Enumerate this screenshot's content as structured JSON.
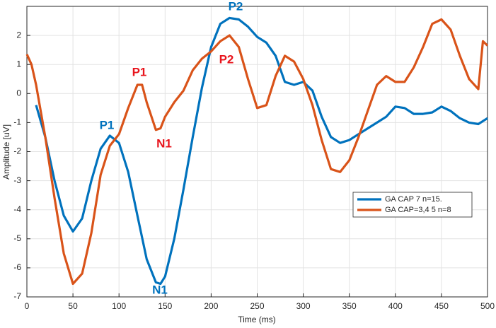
{
  "chart_data": {
    "type": "line",
    "xlabel": "Time (ms)",
    "ylabel": "Amplitude [uV]",
    "xlim": [
      0,
      500
    ],
    "xticks": [
      0,
      50,
      100,
      150,
      200,
      250,
      300,
      350,
      400,
      450,
      500
    ],
    "ylim": [
      -7,
      3
    ],
    "yticks": [
      -7,
      -6,
      -5,
      -4,
      -3,
      -2,
      -1,
      0,
      1,
      2
    ],
    "grid": true,
    "legend": "lower right",
    "series": [
      {
        "name": "GA CAP 7 n=15.",
        "color": "#0072bd",
        "x": [
          10,
          20,
          30,
          40,
          50,
          60,
          70,
          80,
          90,
          100,
          110,
          120,
          130,
          140,
          145,
          150,
          160,
          170,
          180,
          190,
          200,
          210,
          220,
          230,
          240,
          250,
          260,
          270,
          280,
          290,
          300,
          310,
          320,
          330,
          340,
          350,
          360,
          370,
          380,
          390,
          400,
          410,
          420,
          430,
          440,
          450,
          460,
          470,
          480,
          490,
          500
        ],
        "values": [
          -0.4,
          -1.5,
          -3.0,
          -4.2,
          -4.75,
          -4.3,
          -3.0,
          -1.9,
          -1.45,
          -1.7,
          -2.7,
          -4.2,
          -5.7,
          -6.5,
          -6.55,
          -6.3,
          -5.0,
          -3.3,
          -1.5,
          0.2,
          1.6,
          2.4,
          2.6,
          2.55,
          2.3,
          1.95,
          1.75,
          1.3,
          0.4,
          0.3,
          0.4,
          0.1,
          -0.8,
          -1.5,
          -1.7,
          -1.6,
          -1.4,
          -1.2,
          -1.0,
          -0.8,
          -0.45,
          -0.5,
          -0.7,
          -0.7,
          -0.65,
          -0.45,
          -0.6,
          -0.85,
          -1.0,
          -1.05,
          -0.85
        ]
      },
      {
        "name": "GA CAP=3,4 5 n=8",
        "color": "#d95319",
        "x": [
          0,
          5,
          10,
          20,
          30,
          40,
          50,
          60,
          70,
          80,
          90,
          100,
          110,
          120,
          125,
          130,
          140,
          145,
          150,
          160,
          170,
          180,
          190,
          200,
          210,
          220,
          230,
          240,
          250,
          260,
          270,
          280,
          290,
          300,
          310,
          320,
          330,
          340,
          350,
          360,
          370,
          380,
          390,
          400,
          410,
          420,
          430,
          440,
          450,
          460,
          470,
          480,
          490,
          495,
          500
        ],
        "values": [
          1.35,
          1.0,
          0.3,
          -1.5,
          -3.6,
          -5.5,
          -6.55,
          -6.2,
          -4.8,
          -2.8,
          -1.8,
          -1.4,
          -0.5,
          0.3,
          0.3,
          -0.3,
          -1.25,
          -1.2,
          -0.8,
          -0.3,
          0.1,
          0.8,
          1.2,
          1.45,
          1.8,
          2.0,
          1.6,
          0.5,
          -0.5,
          -0.4,
          0.6,
          1.3,
          1.1,
          0.5,
          -0.4,
          -1.6,
          -2.6,
          -2.7,
          -2.3,
          -1.5,
          -0.6,
          0.3,
          0.6,
          0.4,
          0.4,
          0.9,
          1.6,
          2.4,
          2.55,
          2.2,
          1.3,
          0.5,
          0.15,
          1.8,
          1.65
        ]
      }
    ],
    "annotations": [
      {
        "text": "P1",
        "color": "#0072bd"
      },
      {
        "text": "N1",
        "color": "#0072bd"
      },
      {
        "text": "P2",
        "color": "#0072bd"
      },
      {
        "text": "P1",
        "color": "#e8141c"
      },
      {
        "text": "N1",
        "color": "#e8141c"
      },
      {
        "text": "P2",
        "color": "#e8141c"
      }
    ]
  }
}
